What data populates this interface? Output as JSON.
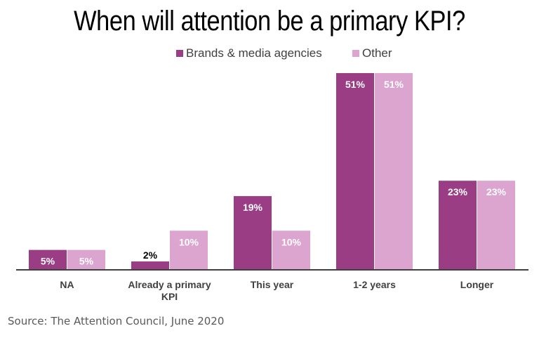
{
  "chart_data": {
    "type": "bar",
    "title": "When will attention be a primary KPI?",
    "categories": [
      "NA",
      "Already a primary KPI",
      "This year",
      "1-2 years",
      "Longer"
    ],
    "series": [
      {
        "name": "Brands & media agencies",
        "color": "#9b3d85",
        "values": [
          5,
          2,
          19,
          51,
          23
        ],
        "labels": [
          "5%",
          "2%",
          "19%",
          "51%",
          "23%"
        ]
      },
      {
        "name": "Other",
        "color": "#dca5d0",
        "values": [
          5,
          10,
          10,
          51,
          23
        ],
        "labels": [
          "5%",
          "10%",
          "10%",
          "51%",
          "23%"
        ]
      }
    ],
    "xlabel": "",
    "ylabel": "",
    "ylim": [
      0,
      51
    ],
    "grid": false,
    "legend": "top-center",
    "unit": "%"
  },
  "source": "Source: The Attention Council, June 2020"
}
